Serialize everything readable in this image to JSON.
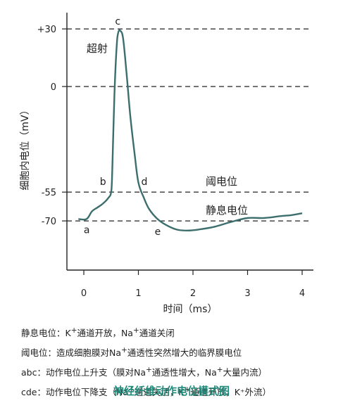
{
  "chart_data": {
    "type": "line",
    "title": "",
    "xlabel": "时间（ms）",
    "ylabel": "细胞内电位（mV）",
    "xlim": [
      -0.2,
      4.0
    ],
    "ylim": [
      -85,
      35
    ],
    "x_ticks": [
      "0",
      "1",
      "2",
      "3",
      "4"
    ],
    "y_ticks": [
      "+30",
      "0",
      "-55",
      "-70"
    ],
    "series": [
      {
        "name": "",
        "x": [
          -0.1,
          0.05,
          0.15,
          0.25,
          0.35,
          0.45,
          0.5,
          0.52,
          0.56,
          0.6,
          0.63,
          0.67,
          0.72,
          0.78,
          0.85,
          0.93,
          1.0,
          1.1,
          1.2,
          1.35,
          1.5,
          1.7,
          1.9,
          2.1,
          2.4,
          2.7,
          3.0,
          3.3,
          3.6,
          3.8,
          4.0
        ],
        "values": [
          -69,
          -69,
          -65,
          -63,
          -61,
          -58,
          -55,
          -45,
          -5,
          20,
          28,
          29,
          25,
          8,
          -15,
          -35,
          -50,
          -58,
          -64,
          -69,
          -72,
          -74.5,
          -75,
          -74.5,
          -73,
          -70.5,
          -68.5,
          -68.5,
          -67.5,
          -67,
          -66
        ]
      }
    ],
    "reference_lines": [
      {
        "y": 30,
        "label": ""
      },
      {
        "y": 0,
        "label": ""
      },
      {
        "y": -55,
        "label": "阈电位"
      },
      {
        "y": -70,
        "label": "静息电位"
      }
    ],
    "point_labels": [
      {
        "text": "a",
        "x": 0.05,
        "y": -69
      },
      {
        "text": "b",
        "x": 0.5,
        "y": -55
      },
      {
        "text": "c",
        "x": 0.65,
        "y": 29
      },
      {
        "text": "d",
        "x": 1.0,
        "y": -55
      },
      {
        "text": "e",
        "x": 1.35,
        "y": -70
      }
    ],
    "annotations": [
      {
        "text": "超射",
        "x": 0.05,
        "y": 18
      }
    ],
    "grid": false,
    "line_color": "#3d6e6e"
  },
  "notes": [
    {
      "prefix": "静息电位：K",
      "sup1": "+",
      "mid1": "通道开放，Na",
      "sup2": "+",
      "rest": "通道关闭"
    },
    {
      "prefix": "阈电位：造成细胞膜对Na",
      "sup1": "+",
      "mid1": "通透性突然增大的临界膜电位",
      "sup2": "",
      "rest": ""
    },
    {
      "prefix": "abc：动作电位上升支（膜对Na",
      "sup1": "+",
      "mid1": "通透性增大，Na",
      "sup2": "+",
      "rest": "大量内流）"
    },
    {
      "prefix": "cde：动作电位下降支（Na",
      "sup1": "+",
      "mid1": "通道失活，K",
      "sup2": "+",
      "rest": "通道开放，K⁺外流）"
    }
  ],
  "caption": "神经纤维动作电位模式图"
}
